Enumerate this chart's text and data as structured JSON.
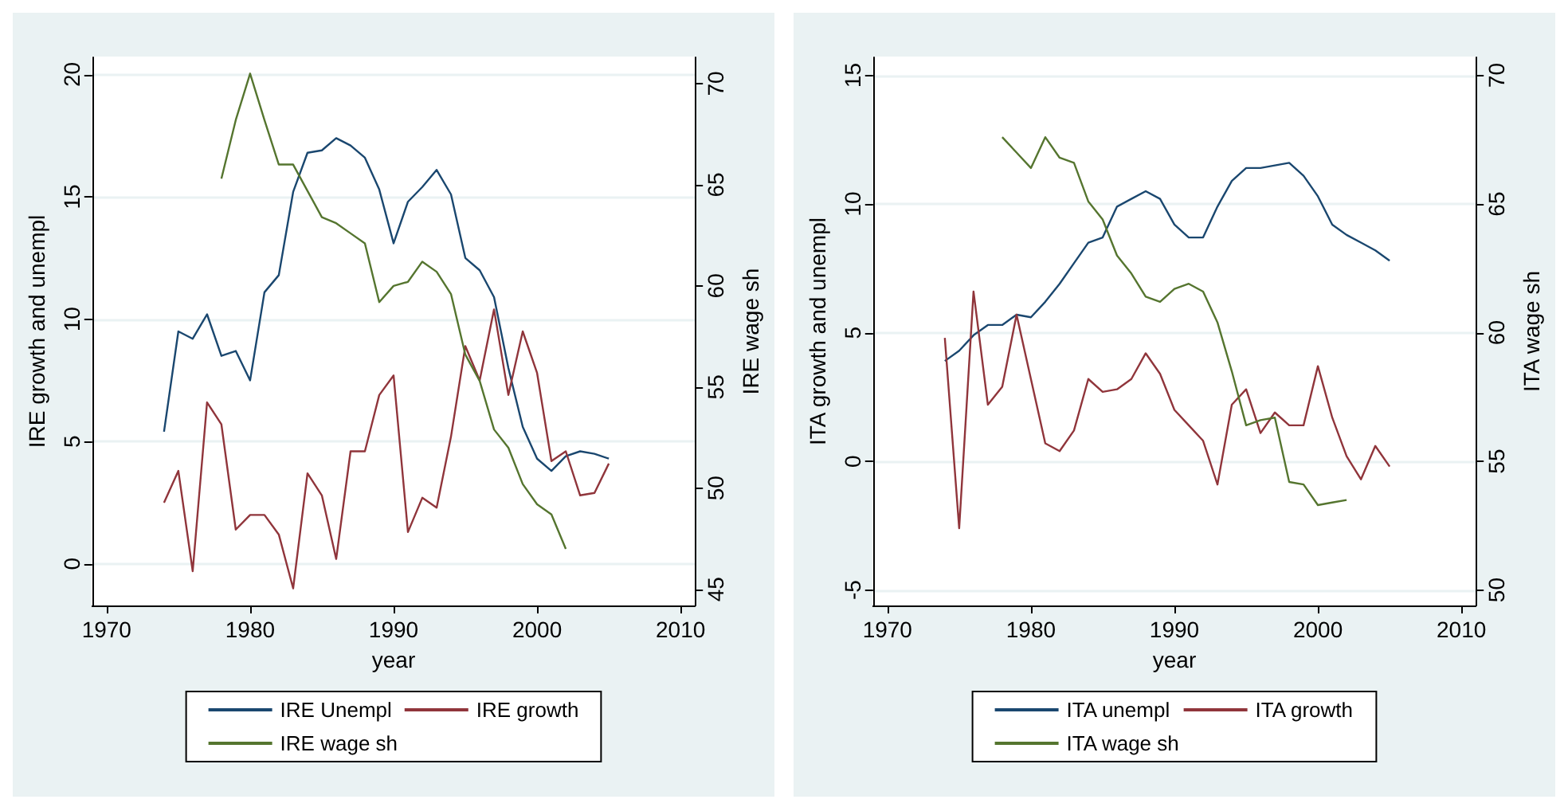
{
  "chart_data": [
    {
      "type": "line",
      "xlabel": "year",
      "ylabel": "IRE growth and unempl",
      "y2label": "IRE wage sh",
      "legend": "bottom",
      "grid": "y",
      "marker": "none",
      "line_style": "solid",
      "xlim": [
        1969,
        2011
      ],
      "xticks": [
        1970,
        1980,
        1990,
        2000,
        2010
      ],
      "ylim": [
        -1.7,
        20.7
      ],
      "yticks": [
        0,
        5,
        10,
        15,
        20
      ],
      "y2lim": [
        44.2,
        71.3
      ],
      "y2ticks": [
        45,
        50,
        55,
        60,
        65,
        70
      ],
      "x": [
        1974,
        1975,
        1976,
        1977,
        1978,
        1979,
        1980,
        1981,
        1982,
        1983,
        1984,
        1985,
        1986,
        1987,
        1988,
        1989,
        1990,
        1991,
        1992,
        1993,
        1994,
        1995,
        1996,
        1997,
        1998,
        1999,
        2000,
        2001,
        2002,
        2003,
        2004,
        2005
      ],
      "series": [
        {
          "name": "IRE Unempl",
          "color": "#1a476f",
          "values": [
            5.4,
            9.5,
            9.2,
            10.2,
            8.5,
            8.7,
            7.5,
            11.1,
            11.8,
            15.2,
            16.8,
            16.9,
            17.4,
            17.1,
            16.6,
            15.3,
            13.1,
            14.8,
            15.4,
            16.1,
            15.1,
            12.5,
            12.0,
            10.9,
            8.0,
            5.6,
            4.3,
            3.8,
            4.4,
            4.6,
            4.5,
            4.3
          ]
        },
        {
          "name": "IRE growth",
          "color": "#90353b",
          "values": [
            2.5,
            3.8,
            -0.3,
            6.6,
            5.7,
            1.4,
            2.0,
            2.0,
            1.2,
            -1.0,
            3.7,
            2.8,
            0.2,
            4.6,
            4.6,
            6.9,
            7.7,
            1.3,
            2.7,
            2.3,
            5.2,
            8.9,
            7.5,
            10.4,
            6.9,
            9.5,
            7.8,
            4.2,
            4.6,
            2.8,
            2.9,
            4.1
          ]
        },
        {
          "name": "IRE wage sh",
          "color": "#55752f",
          "axis": "y2",
          "x": [
            1978,
            1979,
            1980,
            1981,
            1982,
            1983,
            1984,
            1985,
            1986,
            1987,
            1988,
            1989,
            1990,
            1991,
            1992,
            1993,
            1994,
            1995,
            1996,
            1997,
            1998,
            1999,
            2000,
            2001,
            2002
          ],
          "values": [
            65.3,
            68.2,
            70.5,
            68.2,
            66.0,
            66.0,
            64.7,
            63.4,
            63.1,
            62.6,
            62.1,
            59.2,
            60.0,
            60.2,
            61.2,
            60.7,
            59.6,
            56.6,
            55.3,
            52.9,
            52.0,
            50.2,
            49.2,
            48.7,
            47.0
          ]
        }
      ]
    },
    {
      "type": "line",
      "xlabel": "year",
      "ylabel": "ITA growth and unempl",
      "y2label": "ITA wage sh",
      "legend": "bottom",
      "grid": "y",
      "marker": "none",
      "line_style": "solid",
      "xlim": [
        1969,
        2011
      ],
      "xticks": [
        1970,
        1980,
        1990,
        2000,
        2010
      ],
      "ylim": [
        -5.6,
        15.7
      ],
      "yticks": [
        -5,
        0,
        5,
        10,
        15
      ],
      "y2lim": [
        49.4,
        70.7
      ],
      "y2ticks": [
        50,
        55,
        60,
        65,
        70
      ],
      "x": [
        1974,
        1975,
        1976,
        1977,
        1978,
        1979,
        1980,
        1981,
        1982,
        1983,
        1984,
        1985,
        1986,
        1987,
        1988,
        1989,
        1990,
        1991,
        1992,
        1993,
        1994,
        1995,
        1996,
        1997,
        1998,
        1999,
        2000,
        2001,
        2002,
        2003,
        2004,
        2005
      ],
      "series": [
        {
          "name": "ITA unempl",
          "color": "#1a476f",
          "values": [
            3.9,
            4.3,
            4.9,
            5.3,
            5.3,
            5.7,
            5.6,
            6.2,
            6.9,
            7.7,
            8.5,
            8.7,
            9.9,
            10.2,
            10.5,
            10.2,
            9.2,
            8.7,
            8.7,
            9.9,
            10.9,
            11.4,
            11.4,
            11.5,
            11.6,
            11.1,
            10.3,
            9.2,
            8.8,
            8.5,
            8.2,
            7.8
          ]
        },
        {
          "name": "ITA growth",
          "color": "#90353b",
          "values": [
            4.8,
            -2.6,
            6.6,
            2.2,
            2.9,
            5.7,
            3.2,
            0.7,
            0.4,
            1.2,
            3.2,
            2.7,
            2.8,
            3.2,
            4.2,
            3.4,
            2.0,
            1.4,
            0.8,
            -0.9,
            2.2,
            2.8,
            1.1,
            1.9,
            1.4,
            1.4,
            3.7,
            1.7,
            0.2,
            -0.7,
            0.6,
            -0.2
          ]
        },
        {
          "name": "ITA wage sh",
          "color": "#55752f",
          "axis": "y2",
          "x": [
            1978,
            1979,
            1980,
            1981,
            1982,
            1983,
            1984,
            1985,
            1986,
            1987,
            1988,
            1989,
            1990,
            1991,
            1992,
            1993,
            1994,
            1995,
            1996,
            1997,
            1998,
            1999,
            2000,
            2001,
            2002
          ],
          "values": [
            67.6,
            67.0,
            66.4,
            67.6,
            66.8,
            66.6,
            65.1,
            64.4,
            63.0,
            62.3,
            61.4,
            61.2,
            61.7,
            61.9,
            61.6,
            60.4,
            58.5,
            56.4,
            56.6,
            56.7,
            54.2,
            54.1,
            53.3,
            53.4,
            53.5
          ]
        }
      ]
    }
  ]
}
